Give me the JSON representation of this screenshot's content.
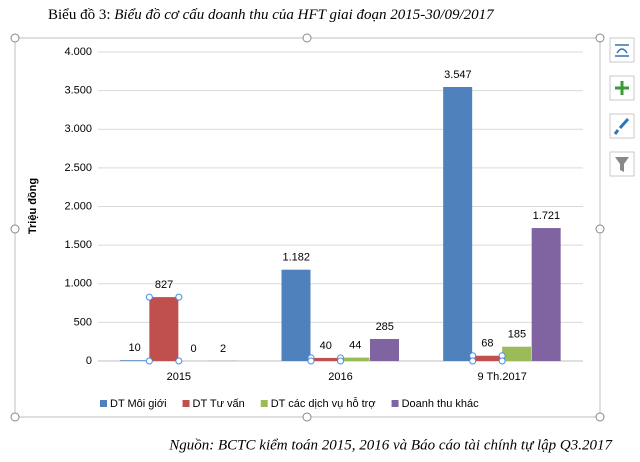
{
  "caption_label": "Biểu đồ 3:",
  "caption": "Biểu đồ cơ cấu doanh thu của HFT  giai đoạn 2015-30/09/2017",
  "source": "Nguồn: BCTC kiểm toán 2015, 2016 và Báo cáo tài chính tự lập Q3.2017",
  "chart_data": {
    "type": "bar",
    "ylabel": "Triệu đồng",
    "categories": [
      "2015",
      "2016",
      "9 Th.2017"
    ],
    "series": [
      {
        "name": "DT Môi giới",
        "color": "#4f81bd",
        "values": [
          10,
          1182,
          3547
        ],
        "value_labels": [
          "10",
          "1.182",
          "3.547"
        ]
      },
      {
        "name": "DT Tư vấn",
        "color": "#c0504d",
        "values": [
          827,
          40,
          68
        ],
        "value_labels": [
          "827",
          "40",
          "68"
        ]
      },
      {
        "name": "DT các dịch vụ hỗ trợ",
        "color": "#9bbb59",
        "values": [
          0,
          44,
          185
        ],
        "value_labels": [
          "0",
          "44",
          "185"
        ]
      },
      {
        "name": "Doanh thu khác",
        "color": "#8064a2",
        "values": [
          2,
          285,
          1721
        ],
        "value_labels": [
          "2",
          "285",
          "1.721"
        ]
      }
    ],
    "ylim": [
      0,
      4000
    ],
    "yticks": [
      0,
      500,
      {
        "value": 1000,
        "label": "1.000"
      },
      {
        "value": 1500,
        "label": "1.500"
      },
      {
        "value": 2000,
        "label": "2.000"
      },
      {
        "value": 2500,
        "label": "2.500"
      },
      {
        "value": 3000,
        "label": "3.000"
      },
      {
        "value": 3500,
        "label": "3.500"
      },
      {
        "value": 4000,
        "label": "4.000"
      }
    ],
    "grid": true,
    "legend": "bottom"
  }
}
